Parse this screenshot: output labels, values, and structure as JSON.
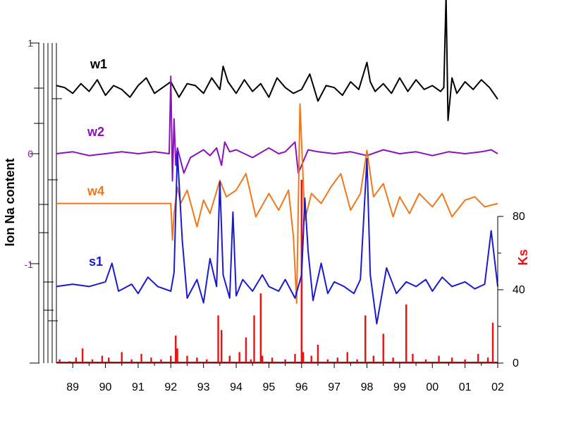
{
  "chart_data": {
    "type": "line",
    "left_axis_label": "Ion Na content",
    "right_axis_label": "Ks",
    "left_ticks": [
      {
        "label": "1",
        "value": 1
      },
      {
        "label": "0",
        "value": 0
      },
      {
        "label": "-1",
        "value": -1
      }
    ],
    "right_ticks": [
      {
        "label": "80",
        "value": 80
      },
      {
        "label": "40",
        "value": 40
      },
      {
        "label": "0",
        "value": 0
      }
    ],
    "x_tick_labels": [
      "89",
      "90",
      "91",
      "92",
      "93",
      "94",
      "95",
      "96",
      "97",
      "98",
      "99",
      "00",
      "01",
      "02"
    ],
    "xlim": [
      1988.5,
      2002
    ],
    "colors": {
      "w1": "#000000",
      "w2": "#8a12b8",
      "w4": "#f0781a",
      "s1": "#1a1ad0",
      "ks": "#ee1010",
      "left_ticks": "#8a12b8",
      "axis": "#000000"
    },
    "series": [
      {
        "name": "w1",
        "color": "#000000",
        "offset": 0.58,
        "scale": 0.35,
        "x": [
          1988.5,
          1988.75,
          1989.0,
          1989.25,
          1989.5,
          1989.75,
          1990.0,
          1990.25,
          1990.5,
          1990.75,
          1991.0,
          1991.25,
          1991.5,
          1991.75,
          1992.0,
          1992.25,
          1992.5,
          1992.75,
          1993.0,
          1993.25,
          1993.5,
          1993.6,
          1993.75,
          1994.0,
          1994.25,
          1994.5,
          1994.75,
          1995.0,
          1995.25,
          1995.5,
          1995.75,
          1996.0,
          1996.25,
          1996.5,
          1996.75,
          1997.0,
          1997.25,
          1997.5,
          1997.75,
          1998.0,
          1998.1,
          1998.25,
          1998.5,
          1998.75,
          1999.0,
          1999.25,
          1999.5,
          1999.75,
          2000.0,
          2000.25,
          2000.35,
          2000.42,
          2000.48,
          2000.6,
          2000.75,
          2001.0,
          2001.25,
          2001.5,
          2001.75,
          2002.0
        ],
        "y": [
          0.1,
          0.05,
          -0.1,
          0.15,
          -0.05,
          0.25,
          -0.15,
          0.1,
          0.0,
          -0.2,
          0.1,
          0.3,
          -0.1,
          0.05,
          0.2,
          -0.2,
          0.15,
          0.1,
          -0.1,
          0.3,
          0.0,
          0.6,
          0.2,
          -0.1,
          0.25,
          -0.05,
          0.15,
          -0.2,
          0.3,
          0.05,
          -0.1,
          0.0,
          0.4,
          -0.3,
          0.1,
          0.05,
          -0.15,
          0.2,
          0.0,
          0.7,
          0.2,
          -0.05,
          0.15,
          -0.1,
          0.3,
          -0.05,
          0.25,
          0.0,
          0.1,
          -0.05,
          0.05,
          2.4,
          -0.8,
          0.3,
          -0.1,
          0.2,
          0.0,
          0.25,
          0.05,
          -0.25
        ]
      },
      {
        "name": "w2",
        "color": "#8a12b8",
        "offset": 0.0,
        "scale": 0.35,
        "x": [
          1988.5,
          1989.0,
          1989.5,
          1990.0,
          1990.5,
          1991.0,
          1991.5,
          1991.95,
          1992.0,
          1992.05,
          1992.1,
          1992.15,
          1992.2,
          1992.4,
          1992.6,
          1993.0,
          1993.2,
          1993.4,
          1993.55,
          1993.65,
          1993.8,
          1994.0,
          1994.5,
          1995.0,
          1995.3,
          1995.5,
          1995.8,
          1995.9,
          1996.2,
          1996.5,
          1997.0,
          1997.5,
          1998.0,
          1998.5,
          1999.0,
          1999.5,
          2000.0,
          2000.5,
          2001.0,
          2001.5,
          2001.8,
          2002.0
        ],
        "y": [
          0.0,
          0.05,
          -0.05,
          0.0,
          0.05,
          0.0,
          0.05,
          0.0,
          2.0,
          -0.7,
          0.9,
          -0.3,
          0.15,
          -0.5,
          -0.1,
          0.1,
          -0.05,
          0.15,
          -0.3,
          0.3,
          0.05,
          0.1,
          -0.1,
          0.15,
          0.0,
          0.05,
          0.3,
          -0.5,
          0.1,
          0.05,
          0.0,
          0.05,
          -0.05,
          0.1,
          0.0,
          0.05,
          -0.05,
          0.05,
          0.0,
          0.05,
          0.1,
          0.0
        ]
      },
      {
        "name": "w4",
        "color": "#f0781a",
        "offset": -0.45,
        "scale": 0.3,
        "x": [
          1988.5,
          1991.0,
          1992.0,
          1992.05,
          1992.1,
          1992.2,
          1992.3,
          1992.5,
          1992.8,
          1993.0,
          1993.2,
          1993.5,
          1993.7,
          1994.0,
          1994.3,
          1994.6,
          1995.0,
          1995.3,
          1995.6,
          1995.75,
          1995.85,
          1995.95,
          1996.1,
          1996.3,
          1996.6,
          1996.9,
          1997.2,
          1997.5,
          1997.8,
          1998.0,
          1998.2,
          1998.5,
          1998.8,
          1999.0,
          1999.3,
          1999.6,
          2000.0,
          2000.3,
          2000.6,
          2001.0,
          2001.3,
          2001.6,
          2002.0
        ],
        "y": [
          0.0,
          0.0,
          0.0,
          -1.1,
          -0.3,
          0.5,
          0.0,
          0.4,
          -0.7,
          0.1,
          -0.3,
          0.7,
          0.2,
          0.4,
          0.9,
          -0.4,
          0.3,
          -0.2,
          0.4,
          -1.0,
          -3.0,
          3.0,
          -0.5,
          0.3,
          0.0,
          0.5,
          0.9,
          -0.2,
          0.3,
          1.6,
          0.2,
          0.6,
          -0.4,
          0.2,
          -0.3,
          0.3,
          -0.1,
          0.3,
          -0.4,
          0.1,
          0.2,
          -0.1,
          0.0
        ]
      },
      {
        "name": "s1",
        "color": "#1a1ad0",
        "offset": -1.2,
        "scale": 0.21,
        "x": [
          1988.5,
          1989.0,
          1989.5,
          1990.0,
          1990.2,
          1990.4,
          1990.8,
          1991.0,
          1991.3,
          1991.6,
          1992.0,
          1992.1,
          1992.2,
          1992.35,
          1992.5,
          1992.8,
          1993.0,
          1993.2,
          1993.4,
          1993.5,
          1993.6,
          1993.8,
          1993.9,
          1994.0,
          1994.2,
          1994.5,
          1994.8,
          1995.0,
          1995.3,
          1995.5,
          1995.8,
          1996.0,
          1996.1,
          1996.2,
          1996.35,
          1996.6,
          1996.8,
          1997.0,
          1997.3,
          1997.6,
          1997.8,
          1998.0,
          1998.1,
          1998.3,
          1998.6,
          1998.9,
          1999.2,
          1999.5,
          1999.8,
          2000.0,
          2000.3,
          2000.6,
          2001.0,
          2001.3,
          2001.6,
          2001.8,
          2002.0
        ],
        "y": [
          0.0,
          0.1,
          0.0,
          0.2,
          1.0,
          -0.2,
          0.1,
          -0.3,
          0.4,
          0.0,
          -0.2,
          0.6,
          5.8,
          2.0,
          -0.5,
          0.3,
          -0.7,
          1.2,
          0.0,
          4.5,
          0.5,
          -0.5,
          3.2,
          -0.4,
          0.3,
          -0.2,
          0.5,
          0.0,
          -0.2,
          0.3,
          -0.5,
          0.5,
          3.8,
          1.5,
          -0.6,
          1.0,
          -0.3,
          0.2,
          0.0,
          -0.3,
          0.3,
          5.5,
          0.5,
          -1.6,
          0.8,
          -0.3,
          0.2,
          0.0,
          0.3,
          -0.2,
          0.4,
          0.0,
          0.2,
          -0.1,
          0.1,
          2.4,
          0.0
        ]
      }
    ],
    "ks": {
      "name": "Ks",
      "color": "#ee1010",
      "x": [
        1988.6,
        1988.9,
        1989.1,
        1989.3,
        1989.6,
        1989.9,
        1990.1,
        1990.5,
        1990.8,
        1991.1,
        1991.4,
        1991.7,
        1992.0,
        1992.15,
        1992.2,
        1992.5,
        1992.8,
        1993.1,
        1993.45,
        1993.55,
        1993.8,
        1994.1,
        1994.3,
        1994.45,
        1994.55,
        1994.75,
        1994.8,
        1995.1,
        1995.5,
        1995.8,
        1996.0,
        1996.05,
        1996.3,
        1996.5,
        1996.8,
        1997.1,
        1997.4,
        1997.7,
        1997.95,
        1998.2,
        1998.5,
        1998.8,
        1999.2,
        1999.4,
        1999.8,
        2000.2,
        2000.6,
        2001.0,
        2001.4,
        2001.7,
        2001.85
      ],
      "values": [
        2,
        1,
        3,
        8,
        2,
        4,
        3,
        6,
        2,
        5,
        3,
        2,
        4,
        15,
        8,
        4,
        3,
        2,
        26,
        18,
        4,
        6,
        14,
        2,
        26,
        38,
        4,
        3,
        2,
        5,
        100,
        6,
        4,
        10,
        2,
        3,
        6,
        2,
        26,
        4,
        16,
        3,
        32,
        5,
        2,
        4,
        3,
        2,
        5,
        3,
        22
      ]
    }
  },
  "series_labels": {
    "w1": "w1",
    "w2": "w2",
    "w4": "w4",
    "s1": "s1"
  }
}
